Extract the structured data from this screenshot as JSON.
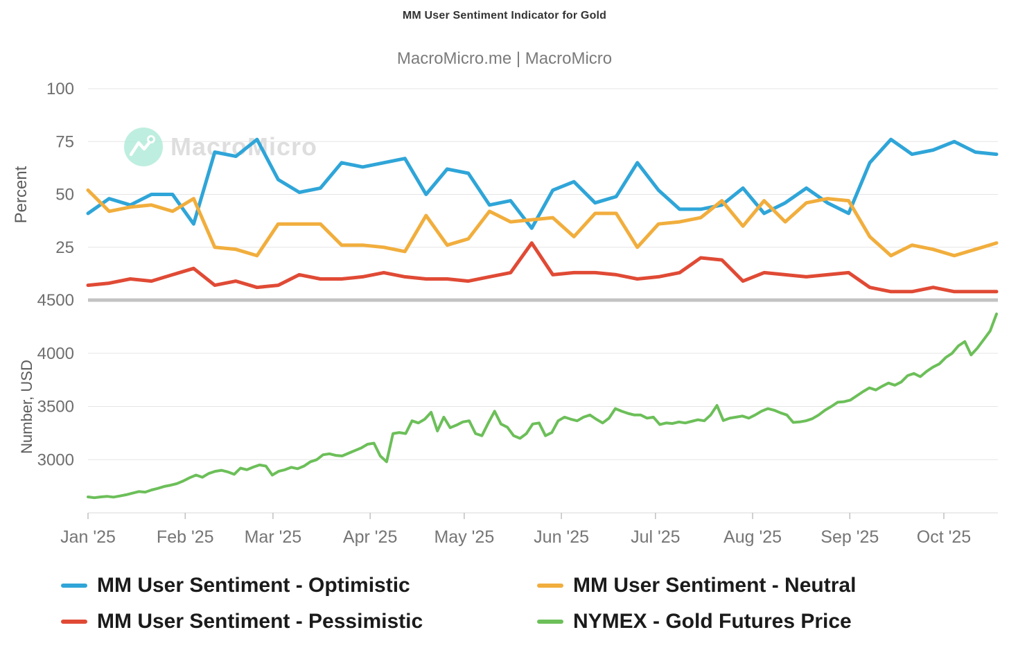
{
  "header": {
    "title": "MM User Sentiment Indicator for Gold",
    "subtitle": "MacroMicro.me | MacroMicro"
  },
  "watermark": {
    "text": "MacroMicro"
  },
  "legend": {
    "items": [
      {
        "label": "MM User Sentiment - Optimistic",
        "color": "#2FA5D8"
      },
      {
        "label": "MM User Sentiment - Neutral",
        "color": "#F1AE3D"
      },
      {
        "label": "MM User Sentiment - Pessimistic",
        "color": "#E04A35"
      },
      {
        "label": "NYMEX - Gold Futures Price",
        "color": "#6CBF59"
      }
    ]
  },
  "chart_data": {
    "type": "line",
    "title": "MM User Sentiment Indicator for Gold",
    "subtitle": "MacroMicro.me | MacroMicro",
    "x_axis": {
      "tick_labels": [
        "Jan '25",
        "Feb '25",
        "Mar '25",
        "Apr '25",
        "May '25",
        "Jun '25",
        "Jul '25",
        "Aug '25",
        "Sep '25",
        "Oct '25"
      ],
      "range": "Jan 1 2025 - Oct 18 2025",
      "grid": false
    },
    "panels": [
      {
        "name": "sentiment",
        "ylabel": "Percent",
        "ylim": [
          0,
          100
        ],
        "yticks": [
          100,
          75,
          50,
          25
        ],
        "sampling": "weekly",
        "series": [
          {
            "name": "MM User Sentiment - Optimistic",
            "color": "#2FA5D8",
            "values": [
              41,
              48,
              45,
              50,
              50,
              36,
              70,
              68,
              76,
              57,
              51,
              53,
              65,
              63,
              65,
              67,
              50,
              62,
              60,
              45,
              47,
              34,
              52,
              56,
              46,
              49,
              65,
              52,
              43,
              43,
              45,
              53,
              41,
              46,
              53,
              46,
              41,
              65,
              76,
              69,
              71,
              75,
              70,
              69
            ]
          },
          {
            "name": "MM User Sentiment - Neutral",
            "color": "#F1AE3D",
            "values": [
              52,
              42,
              44,
              45,
              42,
              48,
              25,
              24,
              21,
              36,
              36,
              36,
              26,
              26,
              25,
              23,
              40,
              26,
              29,
              42,
              37,
              38,
              39,
              30,
              41,
              41,
              25,
              36,
              37,
              39,
              47,
              35,
              47,
              37,
              46,
              48,
              47,
              30,
              21,
              26,
              24,
              21,
              24,
              27
            ]
          },
          {
            "name": "MM User Sentiment - Pessimistic",
            "color": "#E04A35",
            "values": [
              7,
              8,
              10,
              9,
              12,
              15,
              7,
              9,
              6,
              7,
              12,
              10,
              10,
              11,
              13,
              11,
              10,
              10,
              9,
              11,
              13,
              27,
              12,
              13,
              13,
              12,
              10,
              11,
              13,
              20,
              19,
              9,
              13,
              12,
              11,
              12,
              13,
              6,
              4,
              4,
              6,
              4,
              4,
              4
            ]
          }
        ]
      },
      {
        "name": "gold-price",
        "ylabel": "Number, USD",
        "ylim": [
          2500,
          4500
        ],
        "yticks": [
          4500,
          4000,
          3500,
          3000
        ],
        "sampling": "approx-2-day",
        "series": [
          {
            "name": "NYMEX - Gold Futures Price",
            "color": "#6CBF59",
            "values": [
              2650,
              2642,
              2650,
              2655,
              2648,
              2658,
              2670,
              2685,
              2700,
              2695,
              2715,
              2730,
              2748,
              2760,
              2775,
              2800,
              2830,
              2855,
              2835,
              2870,
              2890,
              2900,
              2885,
              2862,
              2920,
              2905,
              2930,
              2950,
              2940,
              2855,
              2890,
              2905,
              2928,
              2915,
              2940,
              2980,
              3000,
              3046,
              3055,
              3040,
              3035,
              3060,
              3085,
              3110,
              3145,
              3155,
              3035,
              2980,
              3245,
              3255,
              3245,
              3365,
              3345,
              3380,
              3445,
              3270,
              3400,
              3300,
              3325,
              3355,
              3365,
              3245,
              3225,
              3345,
              3455,
              3335,
              3305,
              3225,
              3200,
              3245,
              3335,
              3345,
              3225,
              3255,
              3365,
              3400,
              3380,
              3365,
              3400,
              3420,
              3380,
              3345,
              3390,
              3480,
              3455,
              3435,
              3420,
              3420,
              3390,
              3400,
              3330,
              3345,
              3340,
              3355,
              3345,
              3360,
              3375,
              3365,
              3420,
              3510,
              3368,
              3390,
              3400,
              3410,
              3390,
              3420,
              3455,
              3480,
              3465,
              3440,
              3420,
              3350,
              3355,
              3365,
              3385,
              3420,
              3465,
              3500,
              3540,
              3545,
              3560,
              3600,
              3640,
              3675,
              3655,
              3690,
              3720,
              3700,
              3730,
              3790,
              3810,
              3780,
              3830,
              3870,
              3900,
              3960,
              4000,
              4070,
              4110,
              3985,
              4050,
              4130,
              4210,
              4370
            ]
          }
        ]
      }
    ],
    "legend_position": "bottom",
    "styles": {
      "grid_color": "#e5e5e5",
      "panel_divider_color": "#c3c3c3",
      "axis_line_color": "#d8d8d8",
      "tick_mark_color": "#c0c0c0",
      "tick_label_color": "#6e6e6e",
      "x_label_color": "#757575",
      "axis_title_color": "#5c5c5c"
    }
  }
}
